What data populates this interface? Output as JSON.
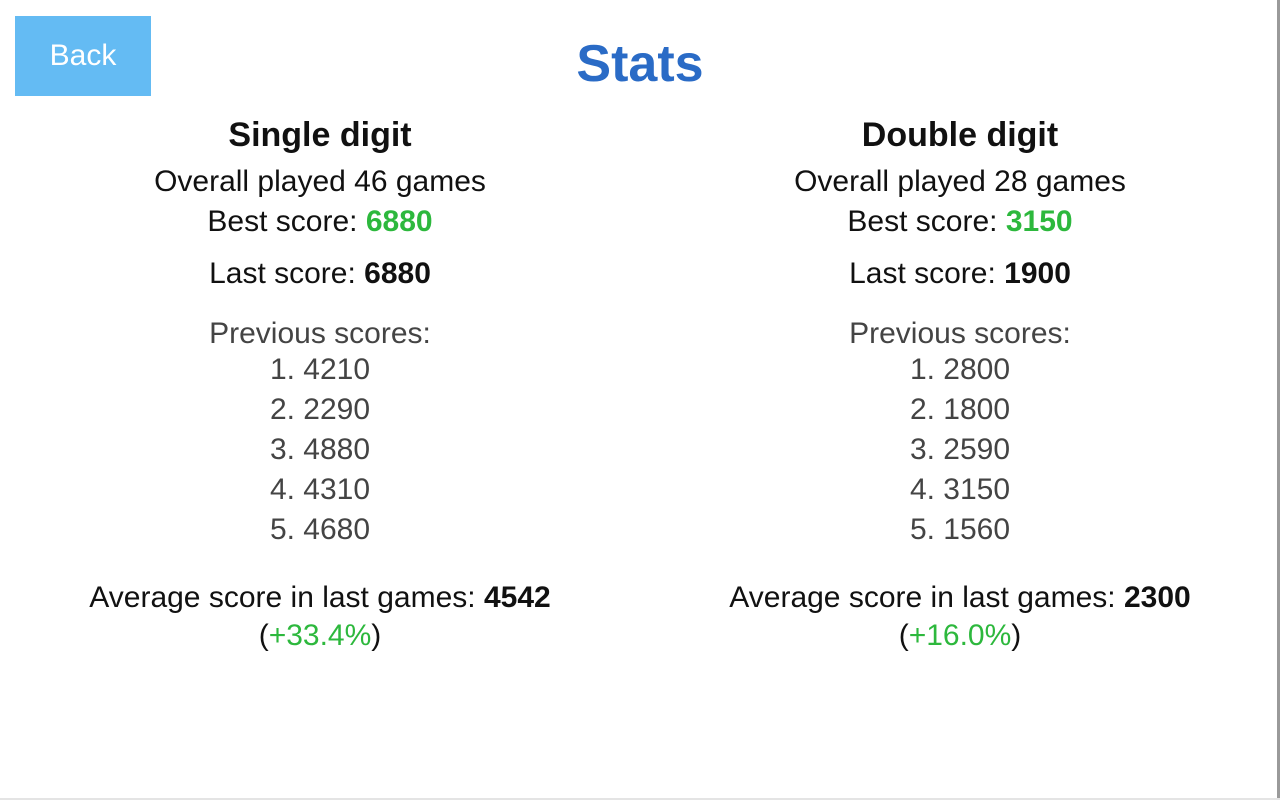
{
  "header": {
    "back_label": "Back",
    "title": "Stats"
  },
  "colors": {
    "accent": "#2a6bc6",
    "button": "#64bbf3",
    "positive": "#2db83d"
  },
  "sections": [
    {
      "title": "Single digit",
      "overall": "Overall played 46 games",
      "best_label": "Best score: ",
      "best": "6880",
      "last_label": "Last score: ",
      "last": "6880",
      "previous_label": "Previous scores:",
      "previous": [
        "1. 4210",
        "2. 2290",
        "3. 4880",
        "4. 4310",
        "5. 4680"
      ],
      "average_label": "Average score in last games: ",
      "average": "4542",
      "change_open": "(",
      "change": "+33.4%",
      "change_close": ")"
    },
    {
      "title": "Double digit",
      "overall": "Overall played 28 games",
      "best_label": "Best score: ",
      "best": "3150",
      "last_label": "Last score: ",
      "last": "1900",
      "previous_label": "Previous scores:",
      "previous": [
        "1. 2800",
        "2. 1800",
        "3. 2590",
        "4. 3150",
        "5. 1560"
      ],
      "average_label": "Average score in last games: ",
      "average": "2300",
      "change_open": "(",
      "change": "+16.0%",
      "change_close": ")"
    }
  ]
}
